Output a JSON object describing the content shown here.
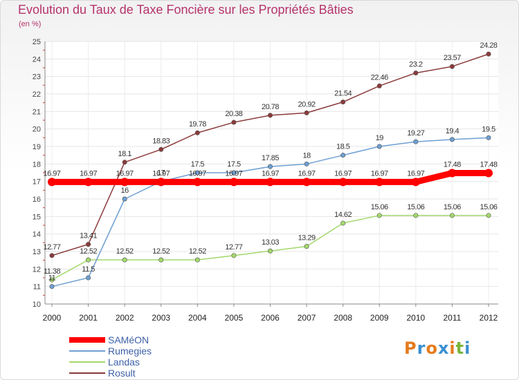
{
  "title": "Evolution du Taux de Taxe Foncière sur les Propriétés Bâties",
  "subtitle": "(en %)",
  "logo": {
    "letters": [
      "P",
      "r",
      "o",
      "x",
      "i",
      "t",
      "i"
    ],
    "colors": [
      "#e57b1d",
      "#3a8fd1",
      "#e57b1d",
      "#3a8fd1",
      "#e57b1d",
      "#78b43a",
      "#3a8fd1"
    ]
  },
  "chart_data": {
    "type": "line",
    "title": "Evolution du Taux de Taxe Foncière sur les Propriétés Bâties",
    "ylabel": "(en %)",
    "x": [
      "2000",
      "2001",
      "2002",
      "2003",
      "2004",
      "2005",
      "2006",
      "2007",
      "2008",
      "2009",
      "2010",
      "2011",
      "2012"
    ],
    "ylim": [
      10,
      25
    ],
    "yticks": [
      10,
      11,
      12,
      13,
      14,
      15,
      16,
      17,
      18,
      19,
      20,
      21,
      22,
      23,
      24,
      25
    ],
    "legend_position": "bottom-left",
    "series": [
      {
        "name": "SAMéON",
        "color": "#ff0000",
        "values": [
          16.97,
          16.97,
          16.97,
          16.97,
          16.97,
          16.97,
          16.97,
          16.97,
          16.97,
          16.97,
          16.97,
          17.48,
          17.48
        ],
        "labels": [
          "16.97",
          "16.97",
          "16.97",
          "16.97",
          "16.97",
          "16.97",
          "16.97",
          "16.97",
          "16.97",
          "16.97",
          "16.97",
          "17.48",
          "17.48"
        ]
      },
      {
        "name": "Rumegies",
        "color": "#6e9fd2",
        "values": [
          11,
          11.5,
          16,
          17,
          17.5,
          17.5,
          17.85,
          18,
          18.5,
          19,
          19.27,
          19.4,
          19.5
        ],
        "labels": [
          "11",
          "11.5",
          "16",
          "17",
          "17.5",
          "17.5",
          "17.85",
          "18",
          "18.5",
          "19",
          "19.27",
          "19.4",
          "19.5"
        ]
      },
      {
        "name": "Landas",
        "color": "#a3d86b",
        "values": [
          11.38,
          12.52,
          12.52,
          12.52,
          12.52,
          12.77,
          13.03,
          13.29,
          14.62,
          15.06,
          15.06,
          15.06,
          15.06
        ],
        "labels": [
          "11.38",
          "12.52",
          "12.52",
          "12.52",
          "12.52",
          "12.77",
          "13.03",
          "13.29",
          "14.62",
          "15.06",
          "15.06",
          "15.06",
          "15.06"
        ]
      },
      {
        "name": "Rosult",
        "color": "#8b3a3a",
        "values": [
          12.77,
          13.41,
          18.1,
          18.83,
          19.78,
          20.38,
          20.78,
          20.92,
          21.54,
          22.46,
          23.2,
          23.57,
          24.28
        ],
        "labels": [
          "12.77",
          "13.41",
          "18.1",
          "18.83",
          "19.78",
          "20.38",
          "20.78",
          "20.92",
          "21.54",
          "22.46",
          "23.2",
          "23.57",
          "24.28"
        ]
      }
    ]
  }
}
